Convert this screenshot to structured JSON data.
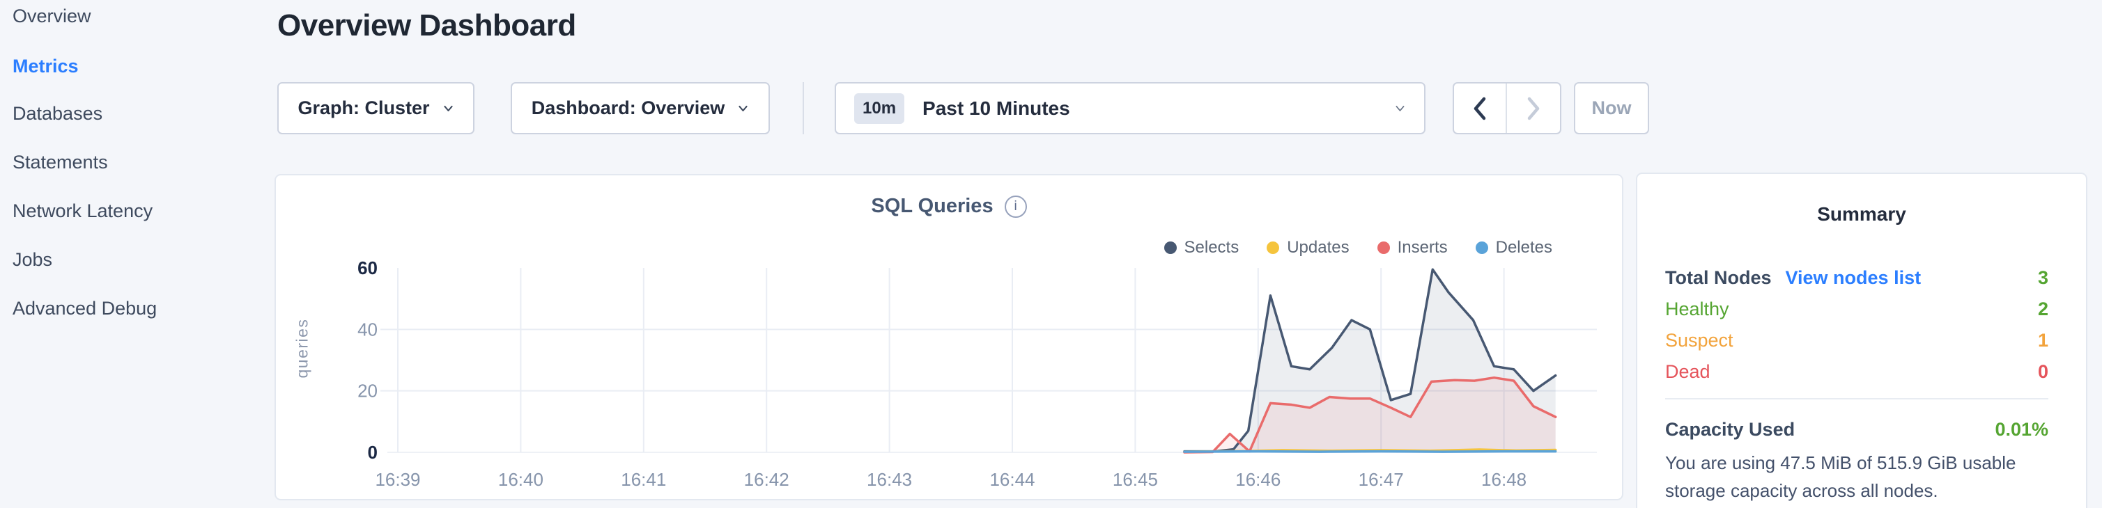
{
  "sidebar": {
    "items": [
      {
        "label": "Overview",
        "active": false
      },
      {
        "label": "Metrics",
        "active": true
      },
      {
        "label": "Databases",
        "active": false
      },
      {
        "label": "Statements",
        "active": false
      },
      {
        "label": "Network Latency",
        "active": false
      },
      {
        "label": "Jobs",
        "active": false
      },
      {
        "label": "Advanced Debug",
        "active": false
      }
    ]
  },
  "header": {
    "title": "Overview Dashboard"
  },
  "controls": {
    "graph_dropdown": {
      "label": "Graph: Cluster"
    },
    "dashboard_dropdown": {
      "label": "Dashboard: Overview"
    },
    "time_selector": {
      "badge": "10m",
      "label": "Past 10 Minutes"
    },
    "prev_button": {
      "name": "previous-time-window",
      "enabled": true
    },
    "next_button": {
      "name": "next-time-window",
      "enabled": false
    },
    "now_button": {
      "label": "Now",
      "enabled": false
    }
  },
  "chart": {
    "title": "SQL Queries",
    "info_icon": "info-icon",
    "chart_data": {
      "type": "area",
      "title": "SQL Queries",
      "ylabel": "queries",
      "xlabel": "",
      "x_ticks": [
        "16:39",
        "16:40",
        "16:41",
        "16:42",
        "16:43",
        "16:44",
        "16:45",
        "16:46",
        "16:47",
        "16:48"
      ],
      "y_ticks": [
        0,
        20,
        40,
        60
      ],
      "ylim": [
        0,
        60
      ],
      "grid": true,
      "legend_position": "top-right",
      "x_unit": "minutes since 16:39, data spans ~16:45.4 to ~16:48.5",
      "series": [
        {
          "name": "Selects",
          "color": "#475872",
          "fill": "rgba(71,88,114,0.10)",
          "points": [
            [
              6.4,
              0.3
            ],
            [
              6.65,
              0.3
            ],
            [
              6.8,
              1
            ],
            [
              6.92,
              7
            ],
            [
              7.1,
              51
            ],
            [
              7.27,
              28
            ],
            [
              7.42,
              27
            ],
            [
              7.6,
              34
            ],
            [
              7.76,
              43
            ],
            [
              7.91,
              40
            ],
            [
              8.08,
              17
            ],
            [
              8.24,
              19
            ],
            [
              8.42,
              59.5
            ],
            [
              8.55,
              52
            ],
            [
              8.75,
              43
            ],
            [
              8.92,
              28
            ],
            [
              9.08,
              27
            ],
            [
              9.24,
              20
            ],
            [
              9.42,
              25
            ]
          ]
        },
        {
          "name": "Updates",
          "color": "#f5c43d",
          "fill": "none",
          "points": [
            [
              6.4,
              0.2
            ],
            [
              6.9,
              0.4
            ],
            [
              7.2,
              0.7
            ],
            [
              7.6,
              0.5
            ],
            [
              8.0,
              0.7
            ],
            [
              8.4,
              0.5
            ],
            [
              8.8,
              0.9
            ],
            [
              9.1,
              0.6
            ],
            [
              9.42,
              0.8
            ]
          ]
        },
        {
          "name": "Inserts",
          "color": "#e96b6b",
          "fill": "rgba(233,107,107,0.10)",
          "points": [
            [
              6.4,
              0
            ],
            [
              6.63,
              0.1
            ],
            [
              6.77,
              6
            ],
            [
              6.93,
              0.3
            ],
            [
              7.1,
              16
            ],
            [
              7.27,
              15.5
            ],
            [
              7.42,
              14.5
            ],
            [
              7.58,
              18
            ],
            [
              7.75,
              17.5
            ],
            [
              7.91,
              17.5
            ],
            [
              8.08,
              14.5
            ],
            [
              8.24,
              11.5
            ],
            [
              8.41,
              23
            ],
            [
              8.6,
              23.5
            ],
            [
              8.76,
              23.3
            ],
            [
              8.92,
              24.3
            ],
            [
              9.08,
              23.3
            ],
            [
              9.24,
              15
            ],
            [
              9.42,
              11.5
            ]
          ]
        },
        {
          "name": "Deletes",
          "color": "#5aa3d9",
          "fill": "none",
          "points": [
            [
              6.4,
              0.2
            ],
            [
              7.0,
              0.3
            ],
            [
              7.5,
              0.2
            ],
            [
              8.0,
              0.3
            ],
            [
              8.5,
              0.2
            ],
            [
              9.0,
              0.3
            ],
            [
              9.42,
              0.3
            ]
          ]
        }
      ]
    }
  },
  "summary": {
    "title": "Summary",
    "total_row": {
      "label": "Total Nodes",
      "link": "View nodes list",
      "value": "3",
      "value_color": "#55a532",
      "link_color": "#2b7eff"
    },
    "status_rows": [
      {
        "label": "Healthy",
        "value": "2",
        "color": "#55a532"
      },
      {
        "label": "Suspect",
        "value": "1",
        "color": "#f2a33c"
      },
      {
        "label": "Dead",
        "value": "0",
        "color": "#e5545b"
      }
    ],
    "capacity": {
      "label": "Capacity Used",
      "value": "0.01%",
      "value_color": "#55a532",
      "description": "You are using 47.5 MiB of 515.9 GiB usable storage capacity across all nodes."
    }
  },
  "colors": {
    "accent_blue": "#2b7eff",
    "page_bg": "#f4f6fa",
    "card_border": "#e3e8f0"
  }
}
